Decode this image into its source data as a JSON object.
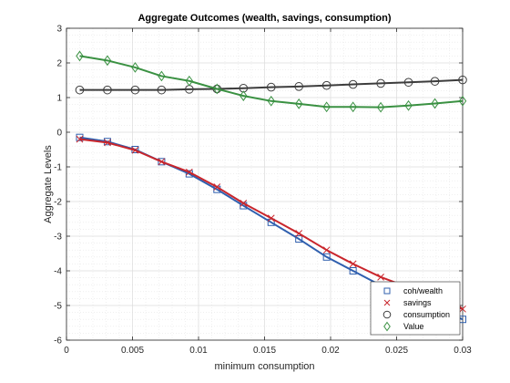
{
  "chart_data": {
    "type": "line",
    "title": "Aggregate Outcomes (wealth, savings, consumption)",
    "xlabel": "minimum consumption",
    "ylabel": "Aggregate Levels",
    "xlim": [
      0,
      0.03
    ],
    "ylim": [
      -6,
      3
    ],
    "xticks": [
      0,
      0.005,
      0.01,
      0.015,
      0.02,
      0.025,
      0.03
    ],
    "xtick_labels": [
      "0",
      "0.005",
      "0.01",
      "0.015",
      "0.02",
      "0.025",
      "0.03"
    ],
    "yticks": [
      -6,
      -5,
      -4,
      -3,
      -2,
      -1,
      0,
      1,
      2,
      3
    ],
    "ytick_labels": [
      "-6",
      "-5",
      "-4",
      "-3",
      "-2",
      "-1",
      "0",
      "1",
      "2",
      "3"
    ],
    "grid": true,
    "minor_grid": true,
    "legend_position": "bottom-right",
    "x": [
      0.001,
      0.0031,
      0.0052,
      0.0072,
      0.0093,
      0.0114,
      0.0134,
      0.0155,
      0.0176,
      0.0197,
      0.0217,
      0.0238,
      0.0259,
      0.0279,
      0.03
    ],
    "series": [
      {
        "name": "coh/wealth",
        "color": "#2f5fae",
        "marker": "square",
        "values": [
          -0.15,
          -0.27,
          -0.5,
          -0.85,
          -1.2,
          -1.65,
          -2.12,
          -2.6,
          -3.08,
          -3.6,
          -4.0,
          -4.42,
          -4.75,
          -5.1,
          -5.4
        ]
      },
      {
        "name": "savings",
        "color": "#c9262c",
        "marker": "x",
        "values": [
          -0.2,
          -0.3,
          -0.52,
          -0.85,
          -1.15,
          -1.58,
          -2.05,
          -2.48,
          -2.92,
          -3.4,
          -3.8,
          -4.18,
          -4.48,
          -4.8,
          -5.1
        ]
      },
      {
        "name": "consumption",
        "color": "#3d3d3d",
        "marker": "circle",
        "values": [
          1.22,
          1.22,
          1.22,
          1.22,
          1.24,
          1.25,
          1.27,
          1.3,
          1.32,
          1.35,
          1.38,
          1.41,
          1.44,
          1.47,
          1.51
        ]
      },
      {
        "name": "Value",
        "color": "#3a9142",
        "marker": "diamond",
        "values": [
          2.2,
          2.07,
          1.87,
          1.62,
          1.48,
          1.25,
          1.05,
          0.9,
          0.82,
          0.73,
          0.73,
          0.72,
          0.77,
          0.83,
          0.9
        ]
      }
    ]
  }
}
